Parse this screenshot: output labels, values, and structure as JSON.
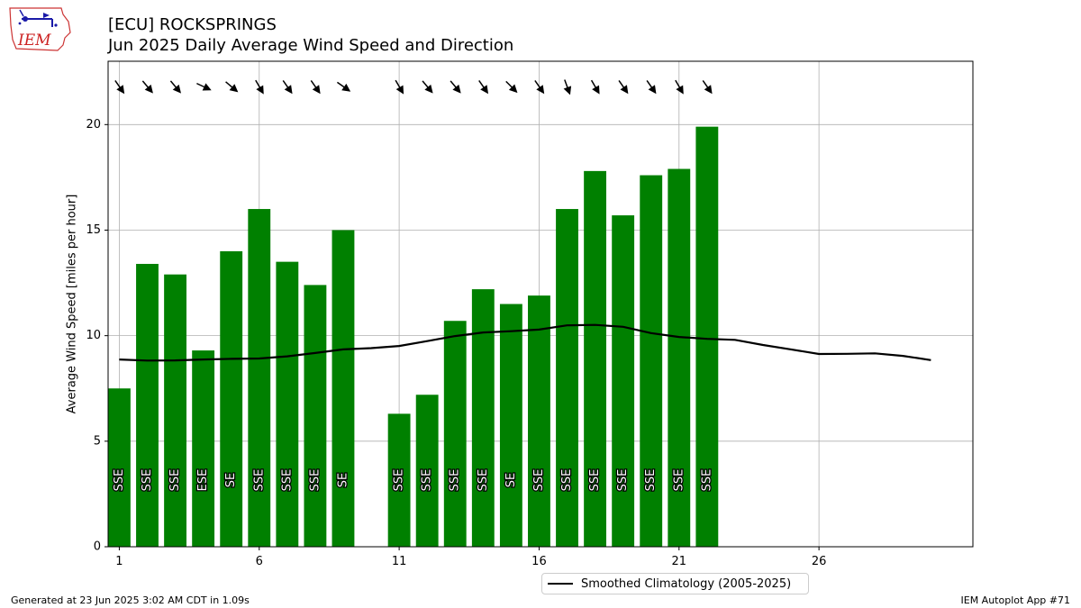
{
  "header": {
    "title": "[ECU] ROCKSPRINGS",
    "subtitle": "Jun 2025 Daily Average Wind Speed and Direction",
    "logo_text": "IEM"
  },
  "footer": {
    "generated": "Generated at 23 Jun 2025 3:02 AM CDT in 1.09s",
    "app": "IEM Autoplot App #71"
  },
  "legend": {
    "label": "Smoothed Climatology (2005-2025)"
  },
  "colors": {
    "bar": "#008000",
    "climatology": "#000000",
    "grid": "#b0b0b0"
  },
  "chart_data": {
    "type": "bar",
    "ylabel": "Average Wind Speed [miles per hour]",
    "xlabel": "",
    "xlim": [
      0.6,
      31.5
    ],
    "ylim": [
      0,
      23
    ],
    "xticks": [
      1,
      6,
      11,
      16,
      21,
      26
    ],
    "yticks": [
      0,
      5,
      10,
      15,
      20
    ],
    "grid": true,
    "legend_position": "bottom-center",
    "bars": [
      {
        "day": 1,
        "speed": 7.5,
        "direction": "SSE",
        "arrow_heading": 145
      },
      {
        "day": 2,
        "speed": 13.4,
        "direction": "SSE",
        "arrow_heading": 140
      },
      {
        "day": 3,
        "speed": 12.9,
        "direction": "SSE",
        "arrow_heading": 140
      },
      {
        "day": 4,
        "speed": 9.3,
        "direction": "ESE",
        "arrow_heading": 115
      },
      {
        "day": 5,
        "speed": 14.0,
        "direction": "SE",
        "arrow_heading": 130
      },
      {
        "day": 6,
        "speed": 16.0,
        "direction": "SSE",
        "arrow_heading": 150
      },
      {
        "day": 7,
        "speed": 13.5,
        "direction": "SSE",
        "arrow_heading": 145
      },
      {
        "day": 8,
        "speed": 12.4,
        "direction": "SSE",
        "arrow_heading": 145
      },
      {
        "day": 9,
        "speed": 15.0,
        "direction": "SE",
        "arrow_heading": 125
      },
      {
        "day": 11,
        "speed": 6.3,
        "direction": "SSE",
        "arrow_heading": 150
      },
      {
        "day": 12,
        "speed": 7.2,
        "direction": "SSE",
        "arrow_heading": 140
      },
      {
        "day": 13,
        "speed": 10.7,
        "direction": "SSE",
        "arrow_heading": 140
      },
      {
        "day": 14,
        "speed": 12.2,
        "direction": "SSE",
        "arrow_heading": 145
      },
      {
        "day": 15,
        "speed": 11.5,
        "direction": "SE",
        "arrow_heading": 135
      },
      {
        "day": 16,
        "speed": 11.9,
        "direction": "SSE",
        "arrow_heading": 145
      },
      {
        "day": 17,
        "speed": 16.0,
        "direction": "SSE",
        "arrow_heading": 160
      },
      {
        "day": 18,
        "speed": 17.8,
        "direction": "SSE",
        "arrow_heading": 150
      },
      {
        "day": 19,
        "speed": 15.7,
        "direction": "SSE",
        "arrow_heading": 145
      },
      {
        "day": 20,
        "speed": 17.6,
        "direction": "SSE",
        "arrow_heading": 145
      },
      {
        "day": 21,
        "speed": 17.9,
        "direction": "SSE",
        "arrow_heading": 150
      },
      {
        "day": 22,
        "speed": 19.9,
        "direction": "SSE",
        "arrow_heading": 145
      }
    ],
    "climatology": {
      "name": "Smoothed Climatology (2005-2025)",
      "x": [
        1,
        2,
        3,
        4,
        5,
        6,
        7,
        8,
        9,
        10,
        11,
        12,
        13,
        14,
        15,
        16,
        17,
        18,
        19,
        20,
        21,
        22,
        23,
        24,
        25,
        26,
        27,
        28,
        29,
        30
      ],
      "y": [
        8.87,
        8.82,
        8.83,
        8.87,
        8.9,
        8.92,
        9.02,
        9.18,
        9.35,
        9.41,
        9.51,
        9.74,
        9.98,
        10.15,
        10.21,
        10.29,
        10.49,
        10.51,
        10.42,
        10.12,
        9.94,
        9.85,
        9.8,
        9.56,
        9.35,
        9.13,
        9.14,
        9.16,
        9.04,
        8.84
      ]
    }
  }
}
